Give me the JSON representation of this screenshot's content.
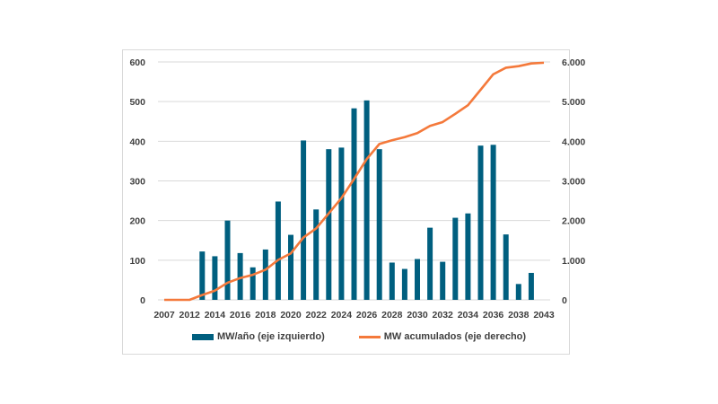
{
  "chart_data": {
    "type": "bar+line",
    "categories": [
      "2007",
      "2012",
      "2013",
      "2014",
      "2015",
      "2016",
      "2017",
      "2018",
      "2019",
      "2020",
      "2021",
      "2022",
      "2023",
      "2024",
      "2025",
      "2026",
      "2027",
      "2028",
      "2029",
      "2030",
      "2031",
      "2032",
      "2033",
      "2034",
      "2035",
      "2036",
      "2037",
      "2038",
      "2039",
      "2043"
    ],
    "x_tick_labels": [
      "2007",
      "2012",
      "2014",
      "2016",
      "2018",
      "2020",
      "2022",
      "2024",
      "2026",
      "2028",
      "2030",
      "2032",
      "2034",
      "2036",
      "2038",
      "2043"
    ],
    "series": [
      {
        "name": "MW/año (eje izquierdo)",
        "type": "bar",
        "axis": "left",
        "color": "#005f7f",
        "values": [
          0,
          0,
          122,
          110,
          200,
          118,
          82,
          127,
          248,
          164,
          402,
          228,
          380,
          384,
          483,
          503,
          380,
          94,
          78,
          103,
          182,
          96,
          207,
          218,
          389,
          391,
          165,
          40,
          68,
          0
        ]
      },
      {
        "name": "MW acumulados (eje derecho)",
        "type": "line",
        "axis": "right",
        "color": "#f4793b",
        "values": [
          0,
          0,
          122,
          232,
          432,
          550,
          632,
          759,
          1007,
          1171,
          1573,
          1801,
          2181,
          2565,
          3048,
          3551,
          3931,
          4025,
          4103,
          4206,
          4388,
          4484,
          4691,
          4909,
          5298,
          5689,
          5854,
          5894,
          5962,
          5980
        ]
      }
    ],
    "y_left": {
      "ylim": [
        0,
        600
      ],
      "ticks": [
        "0",
        "100",
        "200",
        "300",
        "400",
        "500",
        "600"
      ]
    },
    "y_right": {
      "ylim": [
        0,
        6000
      ],
      "ticks": [
        "0",
        "1.000",
        "2.000",
        "3.000",
        "4.000",
        "5.000",
        "6.000"
      ]
    },
    "grid": true,
    "legend": "bottom",
    "title": "",
    "xlabel": "",
    "ylabel": ""
  }
}
